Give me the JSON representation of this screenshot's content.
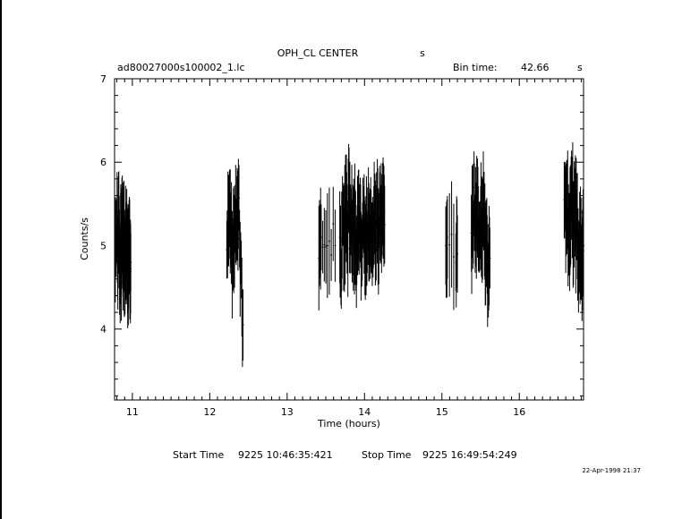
{
  "chart_data": {
    "type": "scatter",
    "title": "OPH_CL CENTER",
    "title_unit": "s",
    "file_name": "ad80027000s100002_1.lc",
    "bin_time_label": "Bin time:",
    "bin_time_value": "42.66",
    "bin_time_unit": "s",
    "xlabel": "Time (hours)",
    "ylabel": "Counts/s",
    "xlim": [
      10.77,
      16.83
    ],
    "ylim": [
      3.15,
      7.0
    ],
    "x_ticks": [
      "11",
      "12",
      "13",
      "14",
      "15",
      "16"
    ],
    "y_ticks": [
      "4",
      "5",
      "6",
      "7"
    ],
    "grid": false,
    "start_time_label": "Start Time",
    "start_time_value": "9225  10:46:35:421",
    "stop_time_label": "Stop Time",
    "stop_time_value": "9225  16:49:54:249",
    "timestamp": "22-Apr-1998 21:37",
    "segments": [
      {
        "start": 10.78,
        "end": 10.98,
        "points": [
          [
            10.78,
            4.95
          ],
          [
            10.8,
            5.15
          ],
          [
            10.81,
            4.75
          ],
          [
            10.82,
            5.25
          ],
          [
            10.83,
            5.05
          ],
          [
            10.84,
            4.65
          ],
          [
            10.85,
            5.1
          ],
          [
            10.86,
            4.9
          ],
          [
            10.87,
            5.4
          ],
          [
            10.88,
            4.8
          ],
          [
            10.89,
            5.15
          ],
          [
            10.9,
            4.75
          ],
          [
            10.91,
            5.0
          ],
          [
            10.92,
            4.9
          ],
          [
            10.93,
            5.05
          ],
          [
            10.94,
            4.6
          ],
          [
            10.95,
            4.85
          ],
          [
            10.96,
            5.1
          ],
          [
            10.97,
            4.7
          ],
          [
            10.98,
            4.8
          ]
        ]
      },
      {
        "start": 12.22,
        "end": 12.43,
        "points": [
          [
            12.22,
            4.95
          ],
          [
            12.24,
            5.3
          ],
          [
            12.26,
            5.45
          ],
          [
            12.28,
            5.15
          ],
          [
            12.3,
            4.85
          ],
          [
            12.32,
            5.05
          ],
          [
            12.35,
            5.35
          ],
          [
            12.37,
            5.5
          ],
          [
            12.4,
            4.85
          ],
          [
            12.43,
            4.05
          ]
        ]
      },
      {
        "start": 13.41,
        "end": 13.62,
        "points": [
          [
            13.41,
            4.85
          ],
          [
            13.44,
            5.1
          ],
          [
            13.52,
            5.0
          ],
          [
            13.62,
            5.0
          ]
        ]
      },
      {
        "start": 13.68,
        "end": 14.26,
        "points": [
          [
            13.68,
            5.1
          ],
          [
            13.7,
            4.6
          ],
          [
            13.72,
            5.3
          ],
          [
            13.74,
            4.95
          ],
          [
            13.76,
            5.5
          ],
          [
            13.78,
            5.05
          ],
          [
            13.8,
            5.7
          ],
          [
            13.82,
            5.2
          ],
          [
            13.84,
            5.0
          ],
          [
            13.86,
            5.35
          ],
          [
            13.88,
            5.1
          ],
          [
            13.9,
            4.85
          ],
          [
            13.92,
            5.3
          ],
          [
            13.94,
            5.15
          ],
          [
            13.96,
            5.0
          ],
          [
            13.98,
            5.45
          ],
          [
            14.0,
            5.2
          ],
          [
            14.02,
            4.95
          ],
          [
            14.04,
            5.35
          ],
          [
            14.06,
            5.1
          ],
          [
            14.08,
            5.25
          ],
          [
            14.1,
            4.95
          ],
          [
            14.12,
            5.4
          ],
          [
            14.14,
            5.15
          ],
          [
            14.16,
            5.3
          ],
          [
            14.18,
            5.05
          ],
          [
            14.2,
            5.35
          ],
          [
            14.22,
            5.2
          ],
          [
            14.24,
            5.45
          ],
          [
            14.26,
            5.25
          ]
        ]
      },
      {
        "start": 15.05,
        "end": 15.2,
        "points": [
          [
            15.05,
            5.0
          ],
          [
            15.07,
            5.1
          ],
          [
            15.18,
            4.8
          ],
          [
            15.2,
            4.9
          ]
        ]
      },
      {
        "start": 15.38,
        "end": 15.62,
        "points": [
          [
            15.38,
            5.15
          ],
          [
            15.4,
            5.35
          ],
          [
            15.42,
            5.55
          ],
          [
            15.44,
            5.25
          ],
          [
            15.46,
            5.45
          ],
          [
            15.48,
            5.1
          ],
          [
            15.5,
            5.3
          ],
          [
            15.52,
            5.0
          ],
          [
            15.54,
            5.4
          ],
          [
            15.56,
            4.9
          ],
          [
            15.58,
            5.05
          ],
          [
            15.6,
            4.55
          ],
          [
            15.62,
            4.85
          ]
        ]
      },
      {
        "start": 16.58,
        "end": 16.83,
        "points": [
          [
            16.58,
            5.55
          ],
          [
            16.6,
            5.3
          ],
          [
            16.62,
            5.5
          ],
          [
            16.64,
            4.95
          ],
          [
            16.66,
            5.35
          ],
          [
            16.68,
            5.6
          ],
          [
            16.7,
            5.15
          ],
          [
            16.72,
            5.4
          ],
          [
            16.74,
            5.25
          ],
          [
            16.76,
            4.9
          ],
          [
            16.78,
            5.1
          ],
          [
            16.8,
            4.8
          ],
          [
            16.82,
            4.95
          ],
          [
            16.83,
            5.0
          ]
        ]
      }
    ]
  }
}
